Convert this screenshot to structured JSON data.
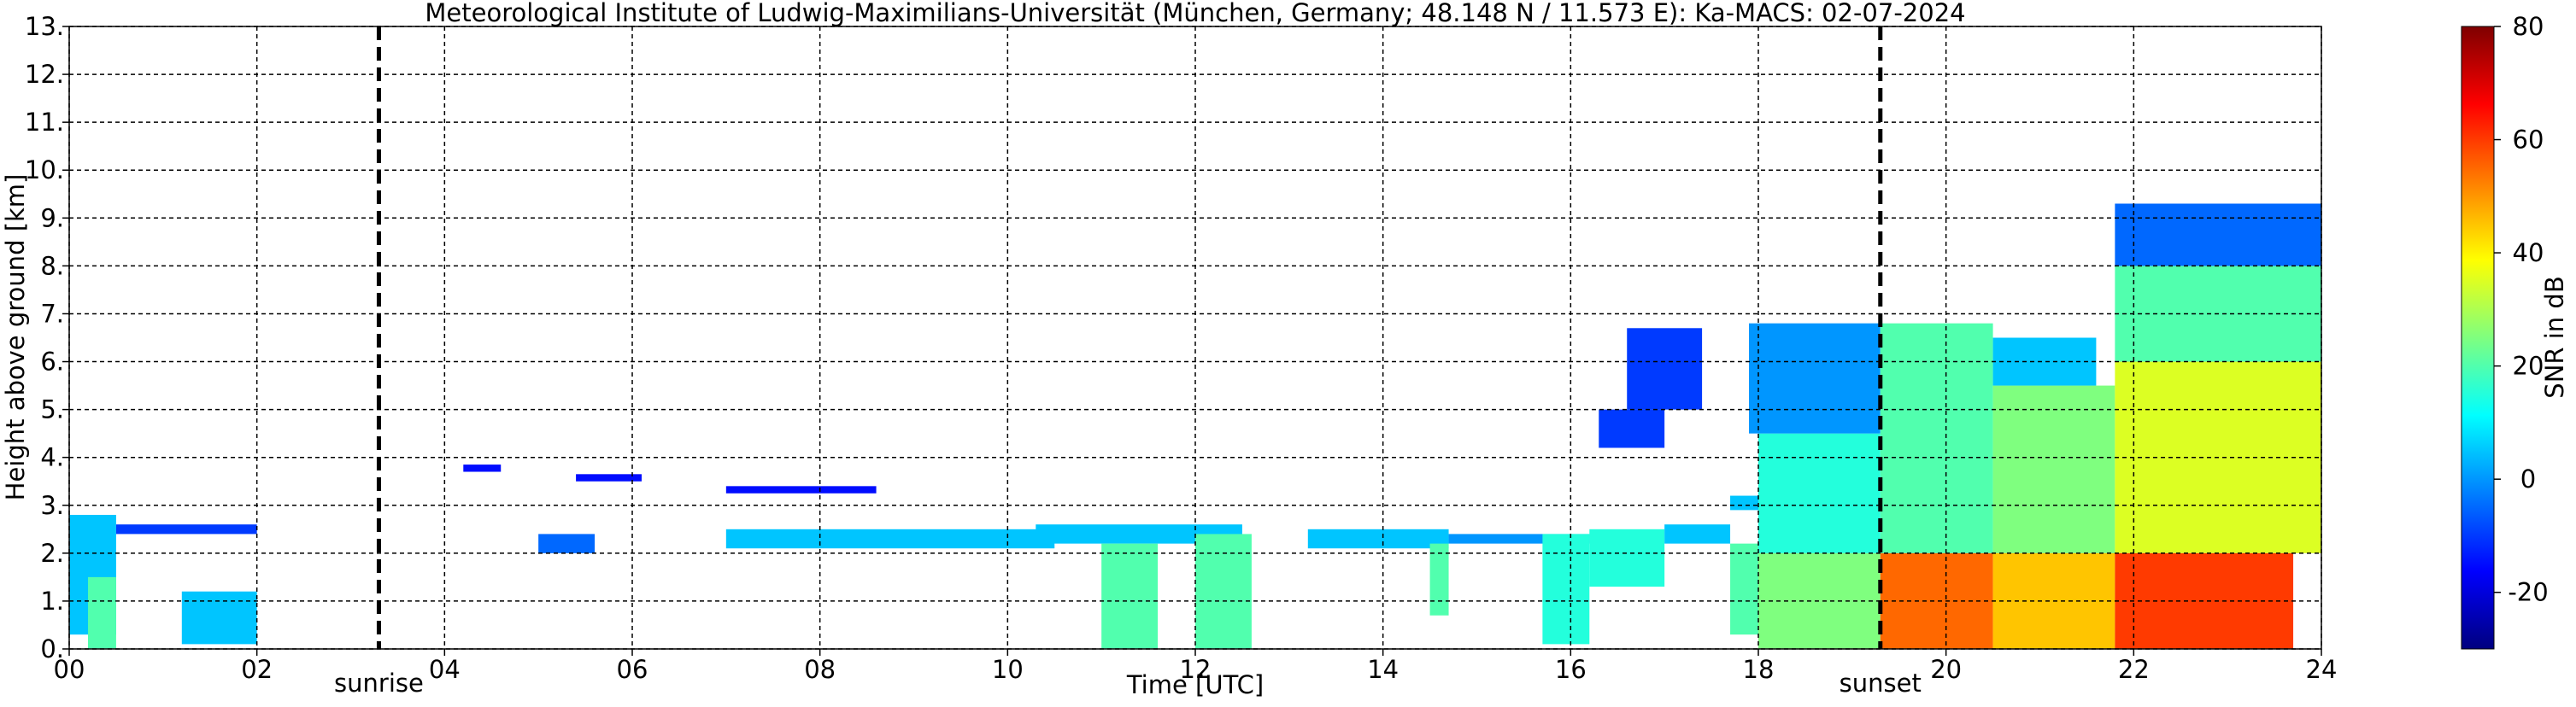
{
  "chart_data": {
    "type": "time-height",
    "title": "Meteorological Institute of Ludwig-Maximilians-Universität (München, Germany; 48.148 N / 11.573 E):    Ka-MACS: 02-07-2024",
    "xlabel": "Time [UTC]",
    "ylabel": "Height above ground [km]",
    "colorbar_label": "SNR in dB",
    "xlim": [
      0,
      24
    ],
    "xticks": [
      {
        "value": 0,
        "label": "00"
      },
      {
        "value": 2,
        "label": "02"
      },
      {
        "value": 4,
        "label": "04"
      },
      {
        "value": 6,
        "label": "06"
      },
      {
        "value": 8,
        "label": "08"
      },
      {
        "value": 10,
        "label": "10"
      },
      {
        "value": 12,
        "label": "12"
      },
      {
        "value": 14,
        "label": "14"
      },
      {
        "value": 16,
        "label": "16"
      },
      {
        "value": 18,
        "label": "18"
      },
      {
        "value": 20,
        "label": "20"
      },
      {
        "value": 22,
        "label": "22"
      },
      {
        "value": 24,
        "label": "24"
      }
    ],
    "ylim": [
      0,
      13
    ],
    "yticks": [
      {
        "value": 0,
        "label": "0."
      },
      {
        "value": 1,
        "label": "1."
      },
      {
        "value": 2,
        "label": "2."
      },
      {
        "value": 3,
        "label": "3."
      },
      {
        "value": 4,
        "label": "4."
      },
      {
        "value": 5,
        "label": "5."
      },
      {
        "value": 6,
        "label": "6."
      },
      {
        "value": 7,
        "label": "7."
      },
      {
        "value": 8,
        "label": "8."
      },
      {
        "value": 9,
        "label": "9."
      },
      {
        "value": 10,
        "label": "10."
      },
      {
        "value": 11,
        "label": "11."
      },
      {
        "value": 12,
        "label": "12."
      },
      {
        "value": 13,
        "label": "13."
      }
    ],
    "clim": [
      -30,
      80
    ],
    "cticks": [
      -20,
      0,
      20,
      40,
      60,
      80
    ],
    "colormap": [
      "#00007f",
      "#0000ff",
      "#007fff",
      "#00ffff",
      "#7fff7f",
      "#ffff00",
      "#ff7f00",
      "#ff0000",
      "#7f0000"
    ],
    "grid": true,
    "events": [
      {
        "name": "sunrise",
        "x": 3.3
      },
      {
        "name": "sunset",
        "x": 19.3
      }
    ],
    "echoes": [
      {
        "t": [
          0.0,
          0.5
        ],
        "h": [
          0.3,
          2.8
        ],
        "snr": 5
      },
      {
        "t": [
          0.2,
          0.5
        ],
        "h": [
          0.0,
          1.5
        ],
        "snr": 20
      },
      {
        "t": [
          0.5,
          2.0
        ],
        "h": [
          2.4,
          2.6
        ],
        "snr": -10
      },
      {
        "t": [
          1.2,
          2.0
        ],
        "h": [
          0.1,
          1.2
        ],
        "snr": 5
      },
      {
        "t": [
          5.0,
          5.6
        ],
        "h": [
          2.0,
          2.4
        ],
        "snr": -5
      },
      {
        "t": [
          4.2,
          4.6
        ],
        "h": [
          3.7,
          3.85
        ],
        "snr": -15
      },
      {
        "t": [
          5.4,
          6.1
        ],
        "h": [
          3.5,
          3.65
        ],
        "snr": -15
      },
      {
        "t": [
          7.0,
          8.6
        ],
        "h": [
          3.25,
          3.4
        ],
        "snr": -15
      },
      {
        "t": [
          7.0,
          10.5
        ],
        "h": [
          2.1,
          2.5
        ],
        "snr": 5
      },
      {
        "t": [
          10.3,
          12.5
        ],
        "h": [
          2.2,
          2.6
        ],
        "snr": 5
      },
      {
        "t": [
          11.0,
          11.6
        ],
        "h": [
          0.0,
          2.2
        ],
        "snr": 20
      },
      {
        "t": [
          12.0,
          12.6
        ],
        "h": [
          0.0,
          2.4
        ],
        "snr": 20
      },
      {
        "t": [
          13.2,
          14.7
        ],
        "h": [
          2.1,
          2.5
        ],
        "snr": 5
      },
      {
        "t": [
          14.5,
          14.7
        ],
        "h": [
          0.7,
          2.2
        ],
        "snr": 20
      },
      {
        "t": [
          14.7,
          16.2
        ],
        "h": [
          2.2,
          2.4
        ],
        "snr": 0
      },
      {
        "t": [
          15.7,
          16.2
        ],
        "h": [
          0.1,
          2.4
        ],
        "snr": 15
      },
      {
        "t": [
          16.2,
          17.0
        ],
        "h": [
          1.3,
          2.5
        ],
        "snr": 15
      },
      {
        "t": [
          17.0,
          17.7
        ],
        "h": [
          2.2,
          2.6
        ],
        "snr": 5
      },
      {
        "t": [
          16.6,
          17.4
        ],
        "h": [
          5.0,
          6.7
        ],
        "snr": -10
      },
      {
        "t": [
          16.3,
          17.0
        ],
        "h": [
          4.2,
          5.0
        ],
        "snr": -10
      },
      {
        "t": [
          17.7,
          18.5
        ],
        "h": [
          2.9,
          3.2
        ],
        "snr": 5
      },
      {
        "t": [
          17.7,
          18.0
        ],
        "h": [
          0.3,
          2.2
        ],
        "snr": 20
      },
      {
        "t": [
          18.0,
          19.3
        ],
        "h": [
          0.0,
          2.0
        ],
        "snr": 25
      },
      {
        "t": [
          18.0,
          19.3
        ],
        "h": [
          2.0,
          4.5
        ],
        "snr": 15
      },
      {
        "t": [
          17.9,
          19.3
        ],
        "h": [
          4.5,
          6.8
        ],
        "snr": 0
      },
      {
        "t": [
          19.3,
          20.5
        ],
        "h": [
          0.0,
          2.0
        ],
        "snr": 55
      },
      {
        "t": [
          19.3,
          20.5
        ],
        "h": [
          2.0,
          6.8
        ],
        "snr": 20
      },
      {
        "t": [
          20.5,
          21.8
        ],
        "h": [
          0.0,
          2.0
        ],
        "snr": 45
      },
      {
        "t": [
          20.5,
          21.8
        ],
        "h": [
          2.0,
          5.5
        ],
        "snr": 25
      },
      {
        "t": [
          20.5,
          21.6
        ],
        "h": [
          5.5,
          6.5
        ],
        "snr": 5
      },
      {
        "t": [
          21.8,
          23.7
        ],
        "h": [
          0.0,
          2.0
        ],
        "snr": 60
      },
      {
        "t": [
          21.8,
          24.0
        ],
        "h": [
          2.0,
          6.0
        ],
        "snr": 35
      },
      {
        "t": [
          21.8,
          24.0
        ],
        "h": [
          6.0,
          8.0
        ],
        "snr": 20
      },
      {
        "t": [
          21.8,
          24.0
        ],
        "h": [
          8.0,
          9.3
        ],
        "snr": -5
      }
    ]
  }
}
